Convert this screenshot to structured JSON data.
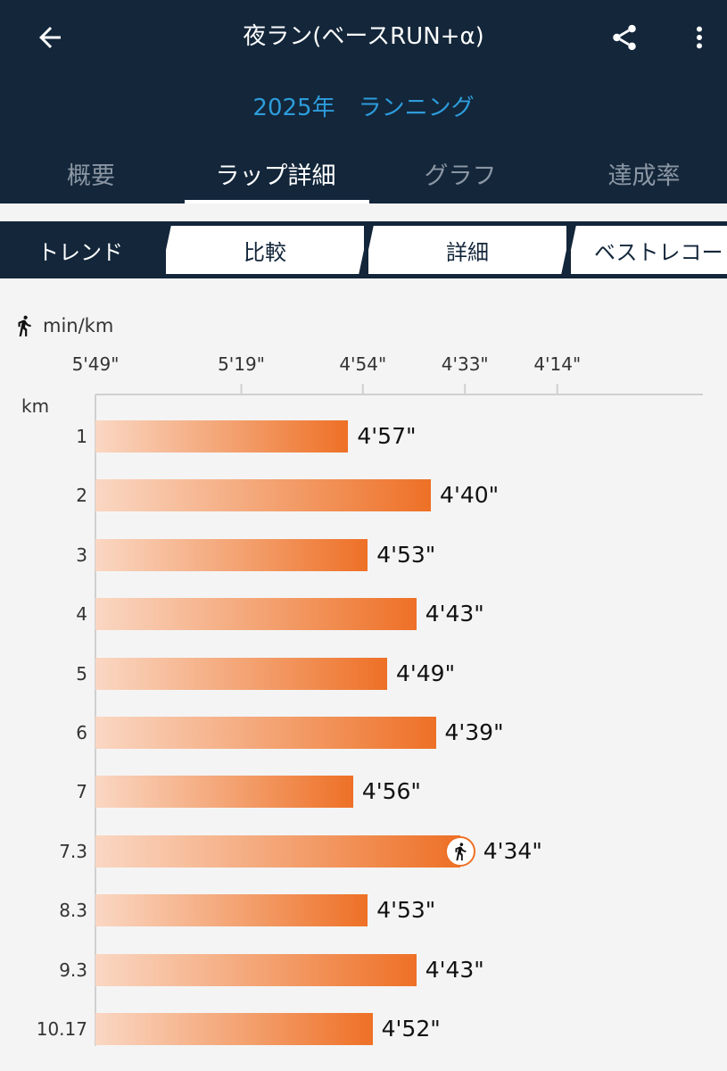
{
  "header": {
    "title": "夜ラン(ベースRUN+α)",
    "subtitle": "2025年　ランニング",
    "icons": [
      "arrow-back-icon",
      "share-icon",
      "more-vertical-icon"
    ]
  },
  "tabs": [
    {
      "label": "概要",
      "active": false
    },
    {
      "label": "ラップ詳細",
      "active": true
    },
    {
      "label": "グラフ",
      "active": false
    },
    {
      "label": "達成率",
      "active": false
    }
  ],
  "subtabs": [
    {
      "label": "トレンド",
      "active": true
    },
    {
      "label": "比較",
      "active": false
    },
    {
      "label": "詳細",
      "active": false
    },
    {
      "label": "ベストレコード",
      "active": false
    }
  ],
  "chart_data": {
    "type": "bar",
    "orientation": "horizontal",
    "unit_label": "min/km",
    "category_axis_label": "km",
    "axis_ticks": [
      "5'49\"",
      "5'19\"",
      "4'54\"",
      "4'33\"",
      "4'14\""
    ],
    "axis_tick_seconds": [
      349,
      319,
      294,
      273,
      254
    ],
    "categories": [
      "1",
      "2",
      "3",
      "4",
      "5",
      "6",
      "7",
      "7.3",
      "8.3",
      "9.3",
      "10.17"
    ],
    "values": [
      "4'57\"",
      "4'40\"",
      "4'53\"",
      "4'43\"",
      "4'49\"",
      "4'39\"",
      "4'56\"",
      "4'34\"",
      "4'53\"",
      "4'43\"",
      "4'52\""
    ],
    "values_seconds": [
      297,
      280,
      293,
      283,
      289,
      279,
      296,
      274,
      293,
      283,
      292
    ],
    "best_index": 7,
    "colors": {
      "bar_start": "#fad7c3",
      "bar_end": "#ee7026",
      "accent": "#2d9cdb",
      "header": "#13263a"
    },
    "grid": true
  }
}
